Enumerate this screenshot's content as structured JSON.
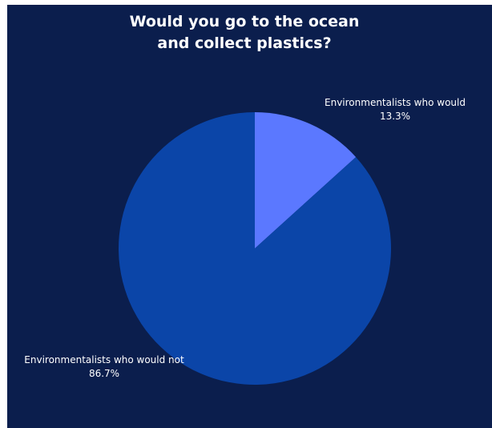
{
  "chart_data": {
    "type": "pie",
    "title_lines": [
      "Would you go to the ocean",
      "and collect plastics?"
    ],
    "slices": [
      {
        "label": "Environmentalists who would",
        "value": 13.3,
        "value_label": "13.3%",
        "color": "#5b78ff"
      },
      {
        "label": "Environmentalists who would not",
        "value": 86.7,
        "value_label": "86.7%",
        "color": "#0b45a8"
      }
    ],
    "start_angle": "12 o'clock",
    "direction": "clockwise",
    "background": "#0b1e4d"
  }
}
